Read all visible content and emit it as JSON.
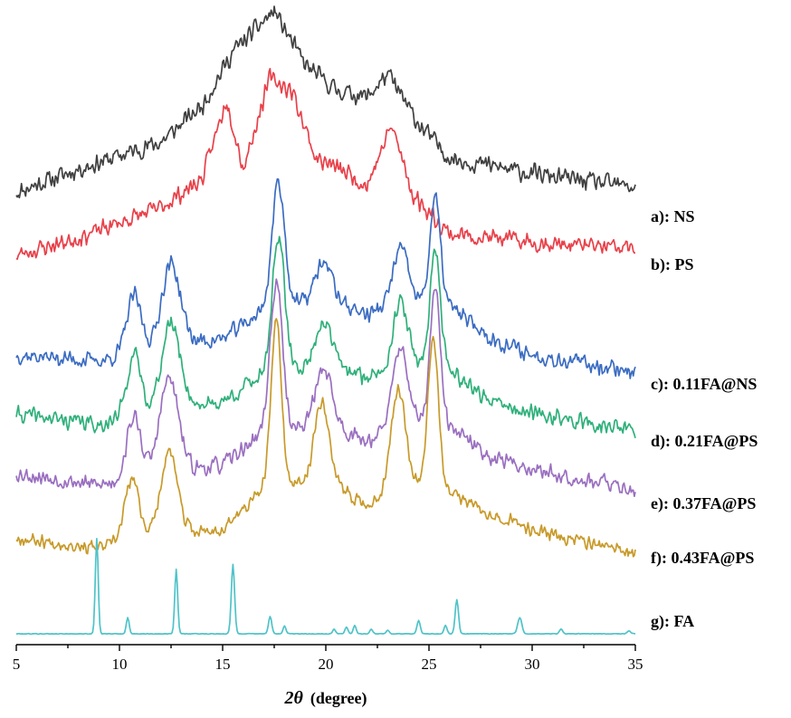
{
  "chart_data": {
    "type": "line",
    "xlabel_symbol": "2θ",
    "xlabel_unit": "(degree)",
    "ylabel": "",
    "xlim": [
      5,
      35
    ],
    "x_ticks": [
      5,
      10,
      15,
      20,
      25,
      30,
      35
    ],
    "grid": false,
    "y_axis_shown": false,
    "series": [
      {
        "name": "a): NS",
        "color": "#404040",
        "noise": 0.05,
        "seed": 11,
        "baseline": [
          [
            5,
            0.0
          ],
          [
            8,
            0.1
          ],
          [
            12,
            0.22
          ],
          [
            14,
            0.38
          ],
          [
            15.5,
            0.62
          ],
          [
            17.5,
            0.8
          ],
          [
            19,
            0.56
          ],
          [
            20.5,
            0.45
          ],
          [
            22,
            0.42
          ],
          [
            23,
            0.52
          ],
          [
            24.5,
            0.3
          ],
          [
            26,
            0.15
          ],
          [
            30,
            0.08
          ],
          [
            35,
            0.02
          ]
        ],
        "peaks": []
      },
      {
        "name": "b): PS",
        "color": "#e8414a",
        "noise": 0.05,
        "seed": 23,
        "baseline": [
          [
            5,
            0.0
          ],
          [
            8,
            0.08
          ],
          [
            12,
            0.22
          ],
          [
            14,
            0.35
          ],
          [
            15.2,
            0.72
          ],
          [
            16,
            0.4
          ],
          [
            17.3,
            0.82
          ],
          [
            18.4,
            0.75
          ],
          [
            19.5,
            0.45
          ],
          [
            21,
            0.38
          ],
          [
            22,
            0.32
          ],
          [
            23.2,
            0.6
          ],
          [
            24.2,
            0.28
          ],
          [
            26,
            0.1
          ],
          [
            30,
            0.06
          ],
          [
            35,
            0.03
          ]
        ],
        "peaks": []
      },
      {
        "name": "c): 0.11FA@NS",
        "color": "#3b6cc2",
        "noise": 0.05,
        "seed": 37,
        "baseline": [
          [
            5,
            0.08
          ],
          [
            9,
            0.05
          ],
          [
            12,
            0.12
          ],
          [
            15,
            0.16
          ],
          [
            17,
            0.3
          ],
          [
            20,
            0.36
          ],
          [
            22,
            0.28
          ],
          [
            24,
            0.36
          ],
          [
            26,
            0.32
          ],
          [
            28,
            0.16
          ],
          [
            30,
            0.08
          ],
          [
            35,
            0.0
          ]
        ],
        "peaks": [
          [
            10.7,
            0.28,
            0.35
          ],
          [
            12.5,
            0.4,
            0.45
          ],
          [
            17.7,
            0.62,
            0.3
          ],
          [
            19.9,
            0.18,
            0.4
          ],
          [
            23.6,
            0.26,
            0.35
          ],
          [
            25.3,
            0.52,
            0.25
          ]
        ]
      },
      {
        "name": "d): 0.21FA@PS",
        "color": "#2fb07a",
        "noise": 0.05,
        "seed": 41,
        "baseline": [
          [
            5,
            0.1
          ],
          [
            9,
            0.05
          ],
          [
            12,
            0.12
          ],
          [
            15,
            0.16
          ],
          [
            17,
            0.3
          ],
          [
            20,
            0.34
          ],
          [
            22,
            0.28
          ],
          [
            24,
            0.36
          ],
          [
            26,
            0.32
          ],
          [
            28,
            0.16
          ],
          [
            30,
            0.1
          ],
          [
            35,
            0.02
          ]
        ],
        "peaks": [
          [
            10.7,
            0.3,
            0.35
          ],
          [
            12.5,
            0.42,
            0.45
          ],
          [
            17.7,
            0.66,
            0.3
          ],
          [
            19.9,
            0.22,
            0.4
          ],
          [
            23.6,
            0.3,
            0.35
          ],
          [
            25.3,
            0.58,
            0.25
          ]
        ]
      },
      {
        "name": "e): 0.37FA@PS",
        "color": "#9a6fc0",
        "noise": 0.05,
        "seed": 53,
        "baseline": [
          [
            5,
            0.1
          ],
          [
            9,
            0.04
          ],
          [
            12,
            0.1
          ],
          [
            15,
            0.14
          ],
          [
            17,
            0.3
          ],
          [
            20,
            0.34
          ],
          [
            22,
            0.26
          ],
          [
            24,
            0.36
          ],
          [
            26,
            0.32
          ],
          [
            28,
            0.18
          ],
          [
            30,
            0.12
          ],
          [
            35,
            0.02
          ]
        ],
        "peaks": [
          [
            10.7,
            0.3,
            0.35
          ],
          [
            12.4,
            0.46,
            0.45
          ],
          [
            17.6,
            0.72,
            0.3
          ],
          [
            19.9,
            0.28,
            0.4
          ],
          [
            23.6,
            0.38,
            0.35
          ],
          [
            25.3,
            0.66,
            0.25
          ]
        ]
      },
      {
        "name": "f): 0.43FA@PS",
        "color": "#c89a2a",
        "noise": 0.04,
        "seed": 67,
        "baseline": [
          [
            5,
            0.08
          ],
          [
            9,
            0.03
          ],
          [
            12,
            0.1
          ],
          [
            15,
            0.12
          ],
          [
            17,
            0.32
          ],
          [
            20,
            0.36
          ],
          [
            22,
            0.24
          ],
          [
            24,
            0.36
          ],
          [
            26,
            0.3
          ],
          [
            28,
            0.2
          ],
          [
            30,
            0.12
          ],
          [
            35,
            0.0
          ]
        ],
        "peaks": [
          [
            10.6,
            0.3,
            0.35
          ],
          [
            12.4,
            0.4,
            0.4
          ],
          [
            17.6,
            0.82,
            0.25
          ],
          [
            19.8,
            0.4,
            0.35
          ],
          [
            23.5,
            0.48,
            0.35
          ],
          [
            25.2,
            0.76,
            0.25
          ]
        ]
      },
      {
        "name": "g): FA",
        "color": "#4fc3c8",
        "noise": 0.004,
        "seed": 79,
        "baseline": [
          [
            5,
            0.0
          ],
          [
            35,
            0.0
          ]
        ],
        "peaks": [
          [
            8.9,
            1.0,
            0.07
          ],
          [
            10.4,
            0.17,
            0.07
          ],
          [
            12.75,
            0.68,
            0.07
          ],
          [
            15.5,
            0.73,
            0.08
          ],
          [
            17.3,
            0.18,
            0.08
          ],
          [
            18.0,
            0.08,
            0.07
          ],
          [
            20.4,
            0.05,
            0.07
          ],
          [
            21.0,
            0.07,
            0.07
          ],
          [
            21.4,
            0.09,
            0.07
          ],
          [
            22.2,
            0.05,
            0.07
          ],
          [
            23.0,
            0.04,
            0.07
          ],
          [
            24.5,
            0.14,
            0.08
          ],
          [
            25.8,
            0.09,
            0.07
          ],
          [
            26.35,
            0.36,
            0.08
          ],
          [
            29.4,
            0.17,
            0.1
          ],
          [
            31.4,
            0.05,
            0.08
          ],
          [
            34.7,
            0.03,
            0.08
          ]
        ]
      }
    ]
  }
}
